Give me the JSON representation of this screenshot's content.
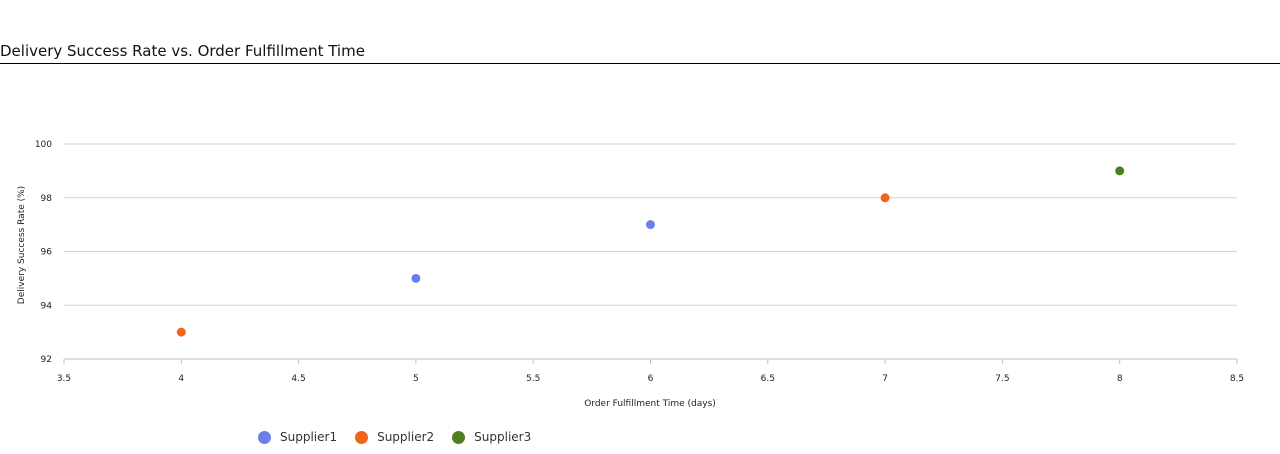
{
  "chart_data": {
    "type": "scatter",
    "title": "Delivery Success Rate vs. Order Fulfillment Time",
    "xlabel": "Order Fulfillment Time (days)",
    "ylabel": "Delivery Success Rate (%)",
    "xlim": [
      3.5,
      8.5
    ],
    "ylim": [
      92,
      100
    ],
    "xticks": [
      "3.5",
      "4",
      "4.5",
      "5",
      "5.5",
      "6",
      "6.5",
      "7",
      "7.5",
      "8",
      "8.5"
    ],
    "yticks": [
      "92",
      "94",
      "96",
      "98",
      "100"
    ],
    "grid": "horizontal",
    "legend_position": "bottom-left",
    "series": [
      {
        "name": "Supplier1",
        "color": "#6b7fe8",
        "points": [
          {
            "x": 5,
            "y": 95
          },
          {
            "x": 6,
            "y": 97
          }
        ]
      },
      {
        "name": "Supplier2",
        "color": "#f26419",
        "points": [
          {
            "x": 4,
            "y": 93
          },
          {
            "x": 7,
            "y": 98
          }
        ]
      },
      {
        "name": "Supplier3",
        "color": "#4e7f1f",
        "points": [
          {
            "x": 8,
            "y": 99
          }
        ]
      }
    ]
  }
}
